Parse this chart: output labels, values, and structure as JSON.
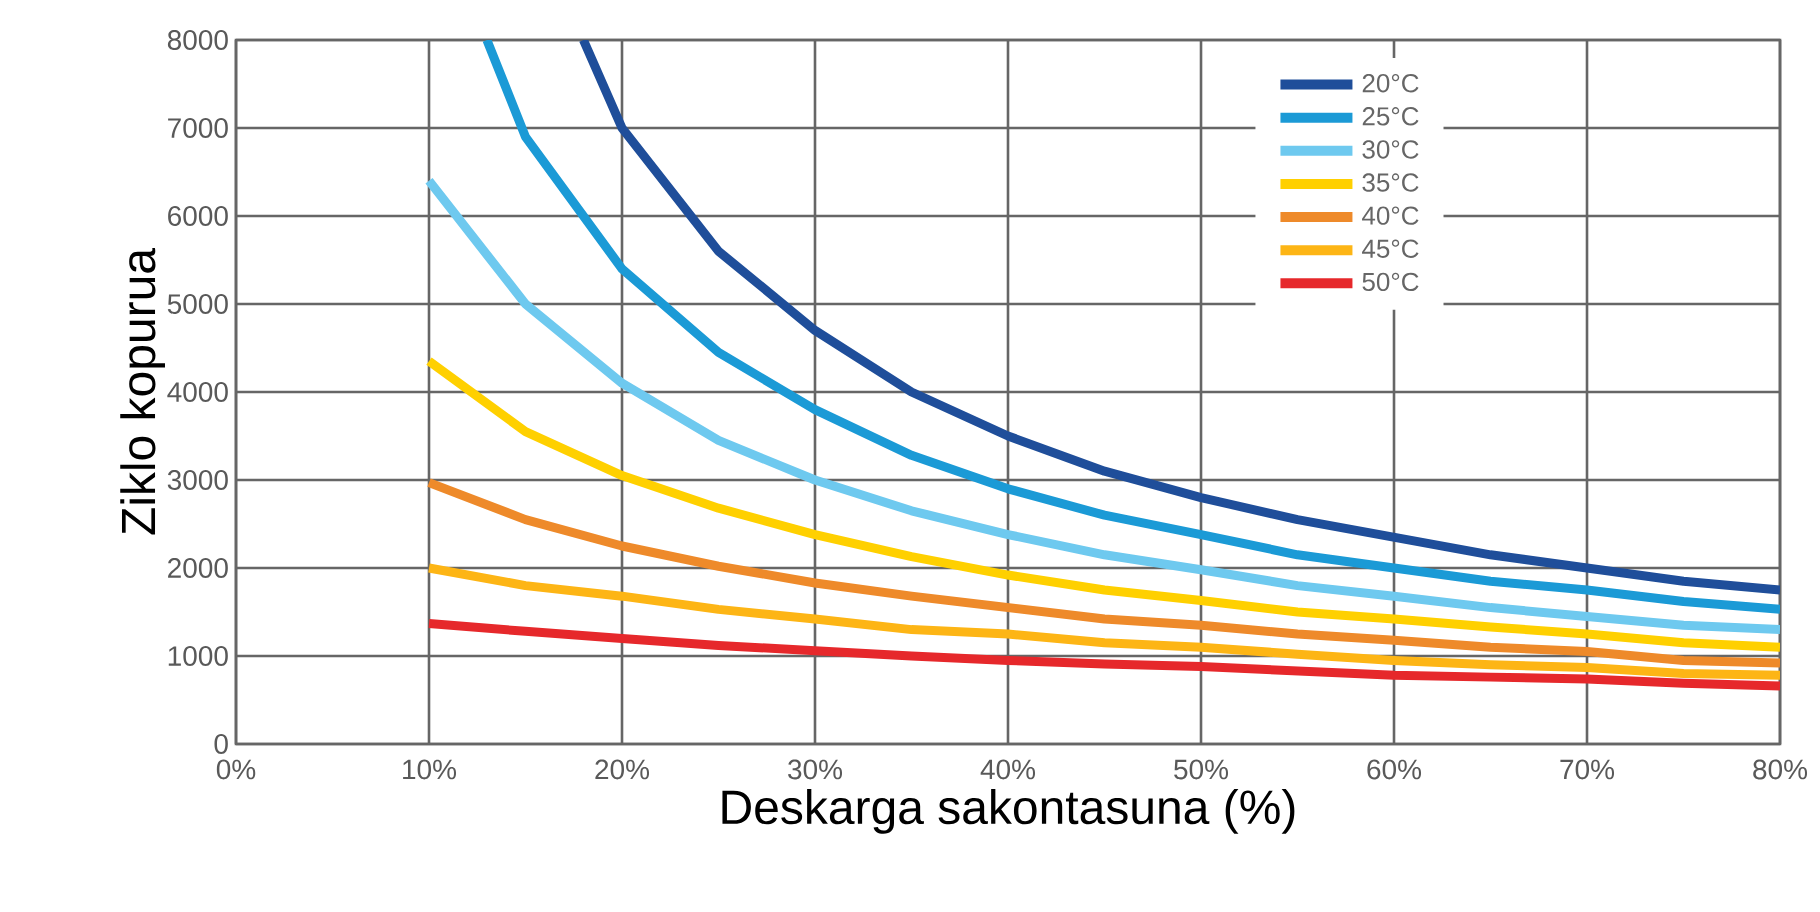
{
  "chart_data": {
    "type": "line",
    "xlabel": "Deskarga sakontasuna (%)",
    "ylabel": "Ziklo kopurua",
    "xlim": [
      0,
      80
    ],
    "ylim": [
      0,
      8000
    ],
    "xticks": [
      {
        "value": 0,
        "label": "0%"
      },
      {
        "value": 10,
        "label": "10%"
      },
      {
        "value": 20,
        "label": "20%"
      },
      {
        "value": 30,
        "label": "30%"
      },
      {
        "value": 40,
        "label": "40%"
      },
      {
        "value": 50,
        "label": "50%"
      },
      {
        "value": 60,
        "label": "60%"
      },
      {
        "value": 70,
        "label": "70%"
      },
      {
        "value": 80,
        "label": "80%"
      }
    ],
    "yticks": [
      0,
      1000,
      2000,
      3000,
      4000,
      5000,
      6000,
      7000,
      8000
    ],
    "grid": true,
    "legend": "top right",
    "marker": "none",
    "line_style": "solid",
    "series": [
      {
        "name": "20°C",
        "color": "#1f4e9a",
        "x": [
          18,
          20,
          25,
          30,
          35,
          40,
          45,
          50,
          55,
          60,
          65,
          70,
          75,
          80
        ],
        "values": [
          8000,
          7000,
          5600,
          4700,
          4000,
          3500,
          3100,
          2800,
          2550,
          2350,
          2150,
          2000,
          1850,
          1750
        ]
      },
      {
        "name": "25°C",
        "color": "#1b9ad6",
        "x": [
          13,
          15,
          20,
          25,
          30,
          35,
          40,
          45,
          50,
          55,
          60,
          65,
          70,
          75,
          80
        ],
        "values": [
          8000,
          6900,
          5400,
          4450,
          3800,
          3280,
          2900,
          2600,
          2380,
          2150,
          2000,
          1850,
          1750,
          1620,
          1530
        ]
      },
      {
        "name": "30°C",
        "color": "#6ec9ef",
        "x": [
          10,
          15,
          20,
          25,
          30,
          35,
          40,
          45,
          50,
          55,
          60,
          65,
          70,
          75,
          80
        ],
        "values": [
          6400,
          5000,
          4100,
          3450,
          3000,
          2650,
          2380,
          2150,
          1980,
          1800,
          1680,
          1550,
          1450,
          1350,
          1300
        ]
      },
      {
        "name": "35°C",
        "color": "#ffd000",
        "x": [
          10,
          15,
          20,
          25,
          30,
          35,
          40,
          45,
          50,
          55,
          60,
          65,
          70,
          75,
          80
        ],
        "values": [
          4350,
          3550,
          3050,
          2680,
          2380,
          2130,
          1920,
          1750,
          1630,
          1500,
          1420,
          1330,
          1250,
          1150,
          1100
        ]
      },
      {
        "name": "40°C",
        "color": "#ee8a2a",
        "x": [
          10,
          15,
          20,
          25,
          30,
          35,
          40,
          45,
          50,
          55,
          60,
          65,
          70,
          75,
          80
        ],
        "values": [
          2970,
          2550,
          2250,
          2020,
          1830,
          1680,
          1550,
          1420,
          1350,
          1250,
          1180,
          1100,
          1050,
          950,
          920
        ]
      },
      {
        "name": "45°C",
        "color": "#fdb515",
        "x": [
          10,
          15,
          20,
          25,
          30,
          35,
          40,
          45,
          50,
          55,
          60,
          65,
          70,
          75,
          80
        ],
        "values": [
          2000,
          1800,
          1680,
          1530,
          1420,
          1300,
          1250,
          1150,
          1100,
          1020,
          950,
          900,
          870,
          800,
          780
        ]
      },
      {
        "name": "50°C",
        "color": "#e6282b",
        "x": [
          10,
          15,
          20,
          25,
          30,
          35,
          40,
          45,
          50,
          55,
          60,
          65,
          70,
          75,
          80
        ],
        "values": [
          1370,
          1280,
          1200,
          1120,
          1060,
          1000,
          950,
          910,
          880,
          830,
          780,
          760,
          740,
          690,
          660
        ]
      }
    ]
  }
}
